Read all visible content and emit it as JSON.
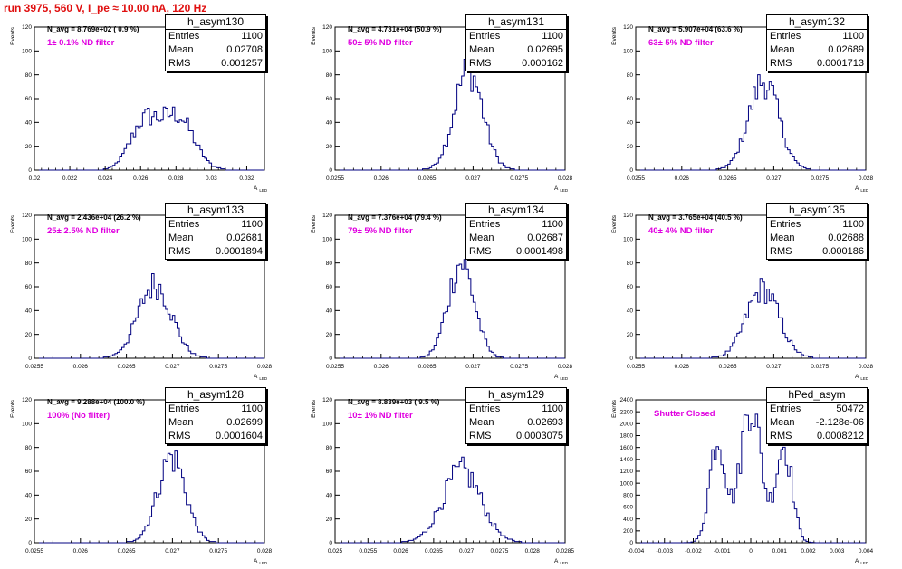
{
  "title": "run 3975,   560 V, I_pe ≈ 10.00 nA, 120 Hz",
  "colors": {
    "title": "#e01010",
    "histogram": "#000080",
    "annotation": "#e000e0"
  },
  "chart_data": [
    {
      "type": "bar",
      "name": "h_asym130",
      "ylabel": "Events",
      "xlabel": "A_LED",
      "xlim": [
        0.02,
        0.033
      ],
      "ylim": [
        0,
        120
      ],
      "xticks": [
        0.02,
        0.022,
        0.024,
        0.026,
        0.028,
        0.03,
        0.032
      ],
      "xtick_labels": [
        "0.02",
        "0.022",
        "0.024",
        "0.026",
        "0.028",
        "0.03",
        "0.032"
      ],
      "yticks": [
        0,
        20,
        40,
        60,
        80,
        100,
        120
      ],
      "stats": {
        "entries": "1100",
        "mean": "0.02708",
        "rms": "0.001257"
      },
      "navg": "N_avg = 8.769e+02 ( 0.9 %)",
      "filter": "1± 0.1% ND filter",
      "mean": 0.02708,
      "sigma": 0.001257,
      "peak": 52,
      "bimodal": true
    },
    {
      "type": "bar",
      "name": "h_asym131",
      "ylabel": "Events",
      "xlabel": "A_LED",
      "xlim": [
        0.0255,
        0.028
      ],
      "ylim": [
        0,
        120
      ],
      "xticks": [
        0.0255,
        0.026,
        0.0265,
        0.027,
        0.0275,
        0.028
      ],
      "xtick_labels": [
        "0.0255",
        "0.026",
        "0.0265",
        "0.027",
        "0.0275",
        "0.028"
      ],
      "yticks": [
        0,
        20,
        40,
        60,
        80,
        100,
        120
      ],
      "stats": {
        "entries": "1100",
        "mean": "0.02695",
        "rms": "0.000162"
      },
      "navg": "N_avg = 4.731e+04 (50.9 %)",
      "filter": "50± 5% ND filter",
      "mean": 0.02695,
      "sigma": 0.000162,
      "peak": 84
    },
    {
      "type": "bar",
      "name": "h_asym132",
      "ylabel": "Events",
      "xlabel": "A_LED",
      "xlim": [
        0.0255,
        0.028
      ],
      "ylim": [
        0,
        120
      ],
      "xticks": [
        0.0255,
        0.026,
        0.0265,
        0.027,
        0.0275,
        0.028
      ],
      "xtick_labels": [
        "0.0255",
        "0.026",
        "0.0265",
        "0.027",
        "0.0275",
        "0.028"
      ],
      "yticks": [
        0,
        20,
        40,
        60,
        80,
        100,
        120
      ],
      "stats": {
        "entries": "1100",
        "mean": "0.02689",
        "rms": "0.0001713"
      },
      "navg": "N_avg = 5.907e+04 (63.6 %)",
      "filter": "63± 5% ND filter",
      "mean": 0.02689,
      "sigma": 0.0001713,
      "peak": 75
    },
    {
      "type": "bar",
      "name": "h_asym133",
      "ylabel": "Events",
      "xlabel": "A_LED",
      "xlim": [
        0.0255,
        0.028
      ],
      "ylim": [
        0,
        120
      ],
      "xticks": [
        0.0255,
        0.026,
        0.0265,
        0.027,
        0.0275,
        0.028
      ],
      "xtick_labels": [
        "0.0255",
        "0.026",
        "0.0265",
        "0.027",
        "0.0275",
        "0.028"
      ],
      "yticks": [
        0,
        20,
        40,
        60,
        80,
        100,
        120
      ],
      "stats": {
        "entries": "1100",
        "mean": "0.02681",
        "rms": "0.0001894"
      },
      "navg": "N_avg = 2.436e+04 (26.2 %)",
      "filter": "25± 2.5% ND filter",
      "mean": 0.02681,
      "sigma": 0.0001894,
      "peak": 62
    },
    {
      "type": "bar",
      "name": "h_asym134",
      "ylabel": "Events",
      "xlabel": "A_LED",
      "xlim": [
        0.0255,
        0.028
      ],
      "ylim": [
        0,
        120
      ],
      "xticks": [
        0.0255,
        0.026,
        0.0265,
        0.027,
        0.0275,
        0.028
      ],
      "xtick_labels": [
        "0.0255",
        "0.026",
        "0.0265",
        "0.027",
        "0.0275",
        "0.028"
      ],
      "yticks": [
        0,
        20,
        40,
        60,
        80,
        100,
        120
      ],
      "stats": {
        "entries": "1100",
        "mean": "0.02687",
        "rms": "0.0001498"
      },
      "navg": "N_avg = 7.376e+04 (79.4 %)",
      "filter": "79± 5% ND filter",
      "mean": 0.02687,
      "sigma": 0.0001498,
      "peak": 80
    },
    {
      "type": "bar",
      "name": "h_asym135",
      "ylabel": "Events",
      "xlabel": "A_LED",
      "xlim": [
        0.0255,
        0.028
      ],
      "ylim": [
        0,
        120
      ],
      "xticks": [
        0.0255,
        0.026,
        0.0265,
        0.027,
        0.0275,
        0.028
      ],
      "xtick_labels": [
        "0.0255",
        "0.026",
        "0.0265",
        "0.027",
        "0.0275",
        "0.028"
      ],
      "yticks": [
        0,
        20,
        40,
        60,
        80,
        100,
        120
      ],
      "stats": {
        "entries": "1100",
        "mean": "0.02688",
        "rms": "0.000186"
      },
      "navg": "N_avg = 3.765e+04 (40.5 %)",
      "filter": "40± 4% ND filter",
      "mean": 0.02688,
      "sigma": 0.000186,
      "peak": 58
    },
    {
      "type": "bar",
      "name": "h_asym128",
      "ylabel": "Events",
      "xlabel": "A_LED",
      "xlim": [
        0.0255,
        0.028
      ],
      "ylim": [
        0,
        120
      ],
      "xticks": [
        0.0255,
        0.026,
        0.0265,
        0.027,
        0.0275,
        0.028
      ],
      "xtick_labels": [
        "0.0255",
        "0.026",
        "0.0265",
        "0.027",
        "0.0275",
        "0.028"
      ],
      "yticks": [
        0,
        20,
        40,
        60,
        80,
        100,
        120
      ],
      "stats": {
        "entries": "1100",
        "mean": "0.02699",
        "rms": "0.0001604"
      },
      "navg": "N_avg = 9.288e+04 (100.0 %)",
      "filter": "100% (No filter)",
      "mean": 0.02699,
      "sigma": 0.0001604,
      "peak": 72
    },
    {
      "type": "bar",
      "name": "h_asym129",
      "ylabel": "Events",
      "xlabel": "A_LED",
      "xlim": [
        0.025,
        0.0285
      ],
      "ylim": [
        0,
        120
      ],
      "xticks": [
        0.025,
        0.0255,
        0.026,
        0.0265,
        0.027,
        0.0275,
        0.028,
        0.0285
      ],
      "xtick_labels": [
        "0.025",
        "0.0255",
        "0.026",
        "0.0265",
        "0.027",
        "0.0275",
        "0.028",
        "0.0285"
      ],
      "yticks": [
        0,
        20,
        40,
        60,
        80,
        100,
        120
      ],
      "stats": {
        "entries": "1100",
        "mean": "0.02693",
        "rms": "0.0003075"
      },
      "navg": "N_avg = 8.839e+03 ( 9.5 %)",
      "filter": "10± 1% ND filter",
      "mean": 0.02693,
      "sigma": 0.0003075,
      "peak": 60
    },
    {
      "type": "bar",
      "name": "hPed_asym",
      "ylabel": "Events",
      "xlabel": "A_LED",
      "xlim": [
        -0.004,
        0.004
      ],
      "ylim": [
        0,
        2400
      ],
      "xticks": [
        -0.004,
        -0.003,
        -0.002,
        -0.001,
        0,
        0.001,
        0.002,
        0.003,
        0.004
      ],
      "xtick_labels": [
        "-0.004",
        "-0.003",
        "-0.002",
        "-0.001",
        "0",
        "0.001",
        "0.002",
        "0.003",
        "0.004"
      ],
      "yticks": [
        0,
        200,
        400,
        600,
        800,
        1000,
        1200,
        1400,
        1600,
        1800,
        2000,
        2200,
        2400
      ],
      "stats": {
        "entries": "50472",
        "mean": "-2.128e-06",
        "rms": "0.0008212"
      },
      "navg": "",
      "filter": "Shutter Closed",
      "mean": 0,
      "sigma": 0.0008212,
      "peak": 2350,
      "trimodal": true
    }
  ]
}
